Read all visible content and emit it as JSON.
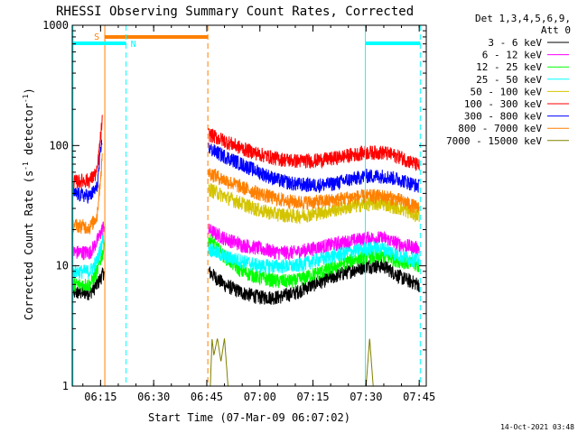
{
  "chart_data": {
    "type": "line",
    "title": "RHESSI Observing Summary Count Rates, Corrected",
    "xlabel": "Start Time (07-Mar-09 06:07:02)",
    "ylabel_main": "Corrected Count Rate (s",
    "ylabel_sup1": "-1",
    "ylabel_mid": " detector",
    "ylabel_sup2": "-1",
    "ylabel_end": ")",
    "yscale": "log",
    "ylim": [
      1,
      1000
    ],
    "xlim_minutes": [
      367,
      467
    ],
    "x_ticks": [
      {
        "label": "06:15",
        "min": 375
      },
      {
        "label": "06:30",
        "min": 390
      },
      {
        "label": "06:45",
        "min": 405
      },
      {
        "label": "07:00",
        "min": 420
      },
      {
        "label": "07:15",
        "min": 435
      },
      {
        "label": "07:30",
        "min": 450
      },
      {
        "label": "07:45",
        "min": 465
      }
    ],
    "y_ticks": [
      {
        "label": "1",
        "value": 1
      },
      {
        "label": "10",
        "value": 10
      },
      {
        "label": "100",
        "value": 100
      },
      {
        "label": "1000",
        "value": 1000
      }
    ],
    "legend_title_1": "Det 1,3,4,5,6,9,",
    "legend_title_2": "Att 0",
    "legend_position": "right",
    "footer": "14-Oct-2021 03:48",
    "segments": [
      [
        367.2,
        376.2
      ],
      [
        405.3,
        465.2
      ]
    ],
    "series": [
      {
        "name": "3 - 6 keV",
        "color": "#000000",
        "points": [
          [
            367.2,
            6
          ],
          [
            372,
            6
          ],
          [
            374,
            7
          ],
          [
            376,
            9
          ],
          [
            405.5,
            9
          ],
          [
            410,
            7
          ],
          [
            415,
            6
          ],
          [
            420,
            5.5
          ],
          [
            425,
            5.5
          ],
          [
            430,
            6
          ],
          [
            435,
            7
          ],
          [
            440,
            8
          ],
          [
            445,
            9
          ],
          [
            450,
            10
          ],
          [
            455,
            10
          ],
          [
            460,
            8
          ],
          [
            465,
            7
          ]
        ]
      },
      {
        "name": "6 - 12 keV",
        "color": "#ff00ff",
        "points": [
          [
            367.2,
            13
          ],
          [
            372,
            13
          ],
          [
            374,
            16
          ],
          [
            376,
            22
          ],
          [
            405.5,
            20
          ],
          [
            410,
            17
          ],
          [
            415,
            15
          ],
          [
            420,
            14
          ],
          [
            425,
            13
          ],
          [
            430,
            13
          ],
          [
            435,
            14
          ],
          [
            440,
            15
          ],
          [
            445,
            16
          ],
          [
            450,
            17
          ],
          [
            455,
            17
          ],
          [
            460,
            15
          ],
          [
            465,
            14
          ]
        ]
      },
      {
        "name": "12 - 25 keV",
        "color": "#00ff00",
        "points": [
          [
            367.2,
            7
          ],
          [
            372,
            7
          ],
          [
            374,
            9
          ],
          [
            376,
            14
          ],
          [
            405.5,
            17
          ],
          [
            410,
            12
          ],
          [
            415,
            9
          ],
          [
            420,
            8
          ],
          [
            425,
            7.5
          ],
          [
            430,
            7.5
          ],
          [
            435,
            8.5
          ],
          [
            440,
            9.5
          ],
          [
            445,
            11
          ],
          [
            450,
            12
          ],
          [
            455,
            12
          ],
          [
            460,
            11
          ],
          [
            465,
            10
          ]
        ]
      },
      {
        "name": "25 - 50 keV",
        "color": "#00ffff",
        "points": [
          [
            367.2,
            9
          ],
          [
            372,
            9
          ],
          [
            374,
            11
          ],
          [
            376,
            18
          ],
          [
            405.5,
            14
          ],
          [
            410,
            12
          ],
          [
            415,
            11
          ],
          [
            420,
            10
          ],
          [
            425,
            10
          ],
          [
            430,
            10
          ],
          [
            435,
            11
          ],
          [
            440,
            12
          ],
          [
            445,
            13
          ],
          [
            450,
            14
          ],
          [
            455,
            14
          ],
          [
            460,
            12
          ],
          [
            465,
            11
          ]
        ]
      },
      {
        "name": "50 - 100 keV",
        "color": "#d4c400",
        "points": [
          [
            405.5,
            44
          ],
          [
            410,
            38
          ],
          [
            415,
            33
          ],
          [
            420,
            29
          ],
          [
            425,
            27
          ],
          [
            430,
            26
          ],
          [
            435,
            27
          ],
          [
            440,
            29
          ],
          [
            445,
            31
          ],
          [
            450,
            33
          ],
          [
            455,
            33
          ],
          [
            460,
            30
          ],
          [
            465,
            26
          ]
        ]
      },
      {
        "name": "100 - 300 keV",
        "color": "#ff0000",
        "points": [
          [
            367.2,
            50
          ],
          [
            372,
            52
          ],
          [
            374,
            60
          ],
          [
            375.5,
            165
          ],
          [
            405.5,
            125
          ],
          [
            410,
            110
          ],
          [
            415,
            95
          ],
          [
            420,
            85
          ],
          [
            425,
            78
          ],
          [
            430,
            75
          ],
          [
            435,
            75
          ],
          [
            440,
            78
          ],
          [
            445,
            83
          ],
          [
            450,
            88
          ],
          [
            455,
            88
          ],
          [
            460,
            80
          ],
          [
            465,
            68
          ]
        ]
      },
      {
        "name": "300 - 800 keV",
        "color": "#0000ff",
        "points": [
          [
            367.2,
            40
          ],
          [
            372,
            38
          ],
          [
            374,
            45
          ],
          [
            375.5,
            120
          ],
          [
            405.5,
            95
          ],
          [
            410,
            82
          ],
          [
            415,
            70
          ],
          [
            420,
            60
          ],
          [
            425,
            52
          ],
          [
            430,
            48
          ],
          [
            435,
            47
          ],
          [
            440,
            48
          ],
          [
            445,
            52
          ],
          [
            450,
            56
          ],
          [
            455,
            56
          ],
          [
            460,
            52
          ],
          [
            465,
            46
          ]
        ]
      },
      {
        "name": "800 - 7000 keV",
        "color": "#ff8000",
        "points": [
          [
            367.2,
            22
          ],
          [
            372,
            21
          ],
          [
            374,
            26
          ],
          [
            375.5,
            80
          ],
          [
            405.5,
            60
          ],
          [
            410,
            52
          ],
          [
            415,
            45
          ],
          [
            420,
            40
          ],
          [
            425,
            36
          ],
          [
            430,
            34
          ],
          [
            435,
            34
          ],
          [
            440,
            35
          ],
          [
            445,
            37
          ],
          [
            450,
            38
          ],
          [
            455,
            38
          ],
          [
            460,
            35
          ],
          [
            465,
            30
          ]
        ]
      },
      {
        "name": "7000 - 15000 keV",
        "color": "#808000",
        "points": [
          [
            406,
            1
          ],
          [
            406.5,
            2.5
          ],
          [
            407,
            1.8
          ],
          [
            408,
            2.5
          ],
          [
            409,
            1.6
          ],
          [
            410,
            2.5
          ],
          [
            411,
            1
          ],
          [
            450,
            1
          ],
          [
            451,
            2.5
          ],
          [
            452,
            1
          ]
        ]
      }
    ],
    "attenuator_bars": [
      {
        "label": "S",
        "color": "#ff8000",
        "x_start": 376.2,
        "x_end": 405.3,
        "start_style": "solid",
        "end_style": "dashed"
      }
    ],
    "night_bars": [
      {
        "label": "N",
        "color": "#00ffff",
        "x_start": 367.2,
        "x_end": 382.2,
        "start_style": "solid",
        "end_style": "dashed"
      },
      {
        "label": "",
        "color": "#00ffff",
        "x_start": 449.8,
        "x_end": 465.3,
        "start_style": "solid",
        "end_style": "dashed"
      }
    ]
  }
}
